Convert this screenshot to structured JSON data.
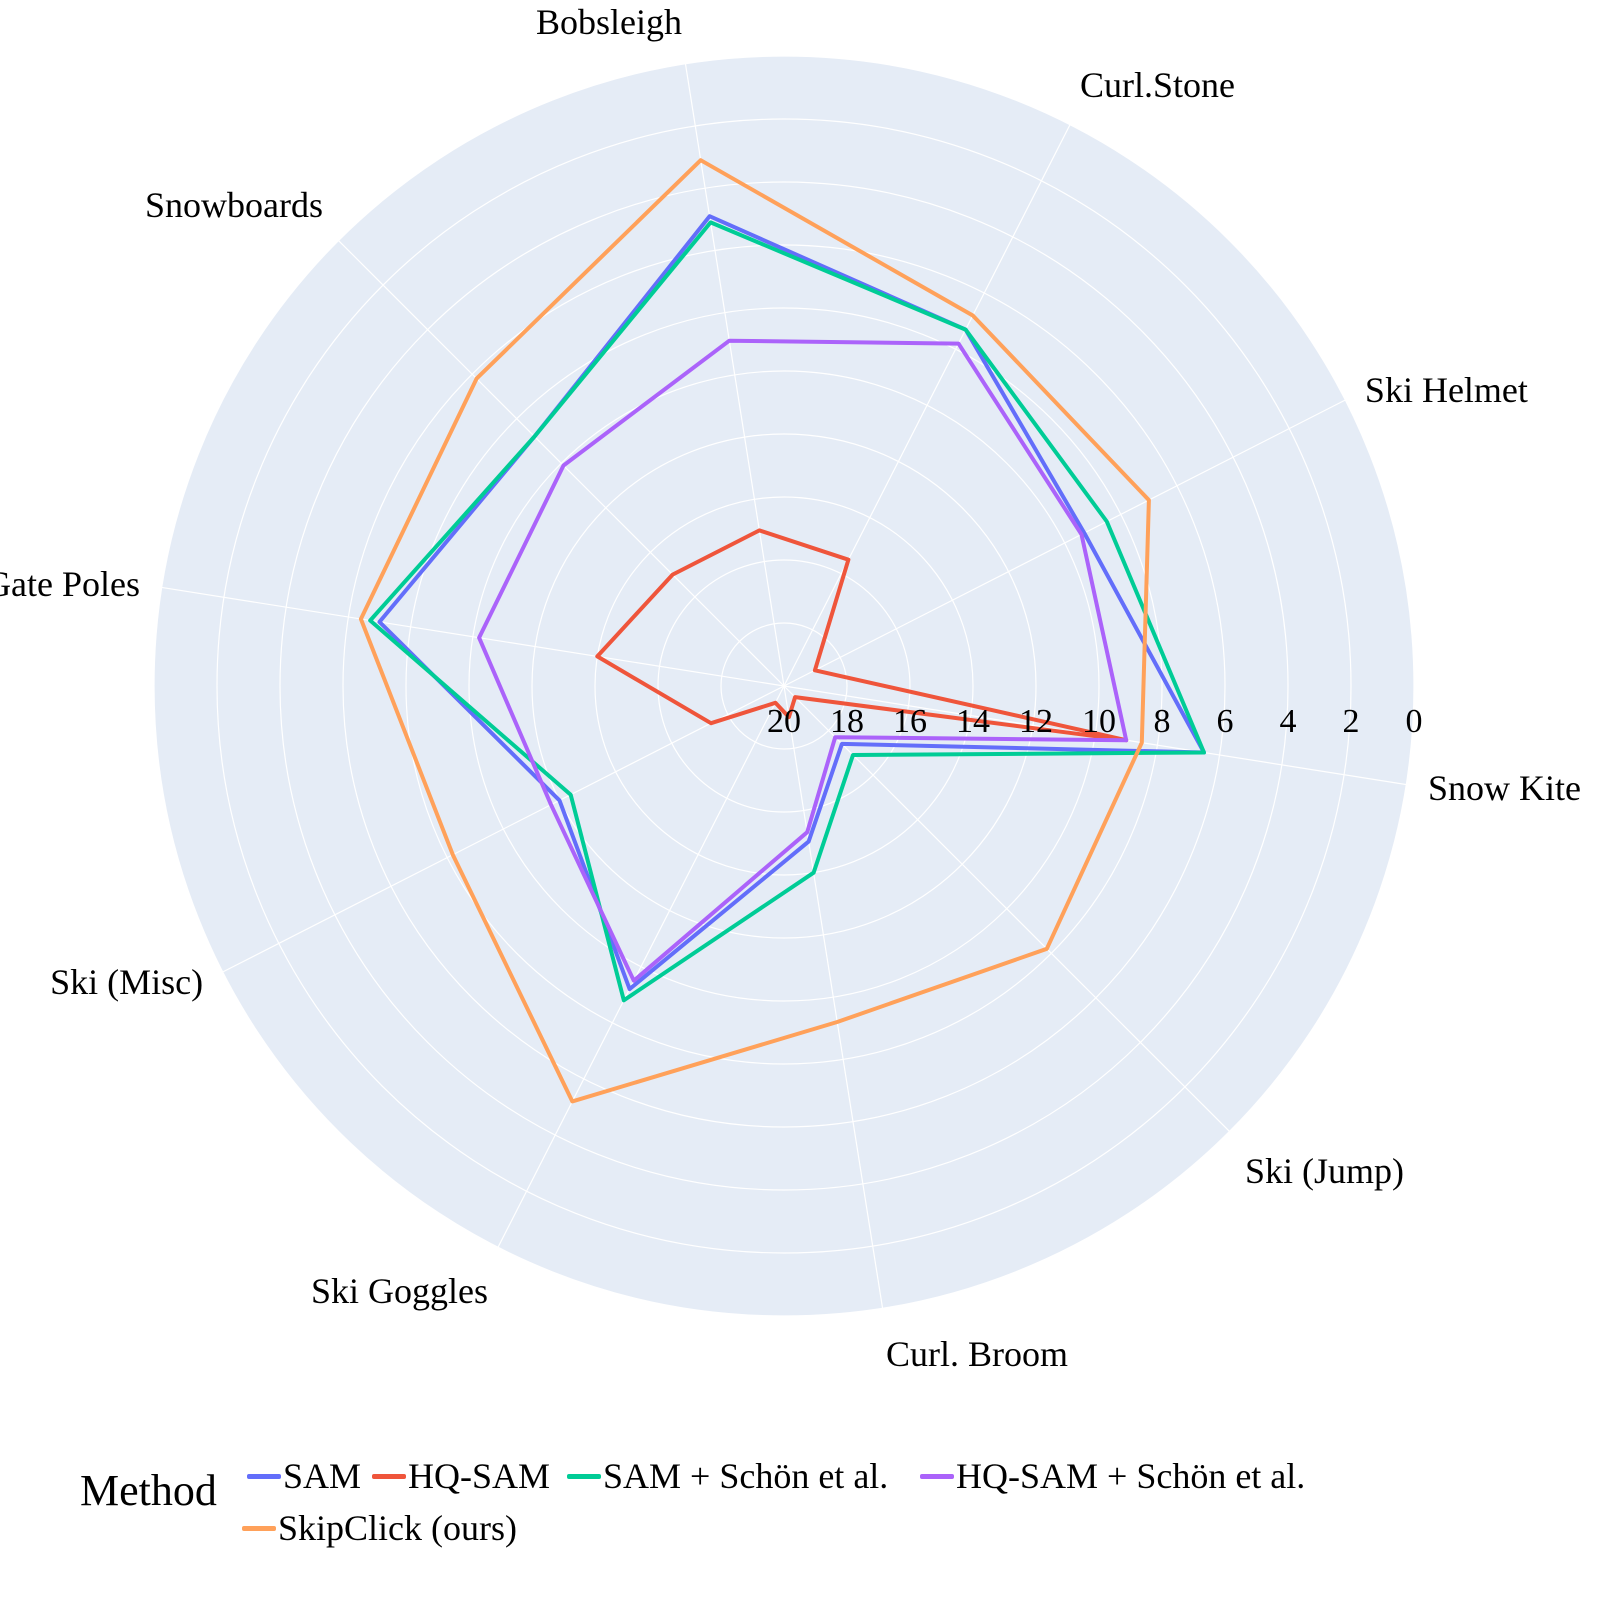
{
  "chart_data": {
    "type": "radar",
    "title": "",
    "categories": [
      "Snow Kite",
      "Ski Helmet",
      "Curl.Stone",
      "Bobsleigh",
      "Snowboards",
      "Gate Poles",
      "Ski (Misc)",
      "Ski Goggles",
      "Curl. Broom",
      "Ski (Jump)"
    ],
    "radial_axis": {
      "reversed": true,
      "range": [
        0,
        20
      ],
      "tick_labels": [
        "20",
        "18",
        "16",
        "14",
        "12",
        "10",
        "8",
        "6",
        "4",
        "2",
        "0"
      ]
    },
    "legend_title": "Method",
    "legend_position": "bottom",
    "grid": true,
    "series": [
      {
        "name": "SAM",
        "color": "#636efa",
        "values": [
          6.5,
          9.3,
          7.3,
          4.9,
          8.8,
          7.0,
          12.0,
          9.2,
          15.0,
          17.4
        ]
      },
      {
        "name": "HQ-SAM",
        "color": "#ef553b",
        "values": [
          9.0,
          18.9,
          15.5,
          15.0,
          15.0,
          14.0,
          17.4,
          19.4,
          19.0,
          19.5
        ]
      },
      {
        "name": "SAM + Schön et al.",
        "color": "#00cc96",
        "values": [
          6.5,
          8.5,
          7.3,
          5.1,
          8.8,
          6.7,
          12.4,
          8.8,
          14.0,
          16.9
        ]
      },
      {
        "name": "HQ-SAM + Schön et al.",
        "color": "#ab63fa",
        "values": [
          9.0,
          9.4,
          7.8,
          8.9,
          10.1,
          10.2,
          11.7,
          9.5,
          15.3,
          17.7
        ]
      },
      {
        "name": "SkipClick (ours)",
        "color": "#ffa15a",
        "values": [
          8.5,
          7.0,
          6.8,
          3.1,
          6.2,
          6.4,
          8.2,
          5.2,
          9.2,
          8.2
        ]
      }
    ]
  }
}
